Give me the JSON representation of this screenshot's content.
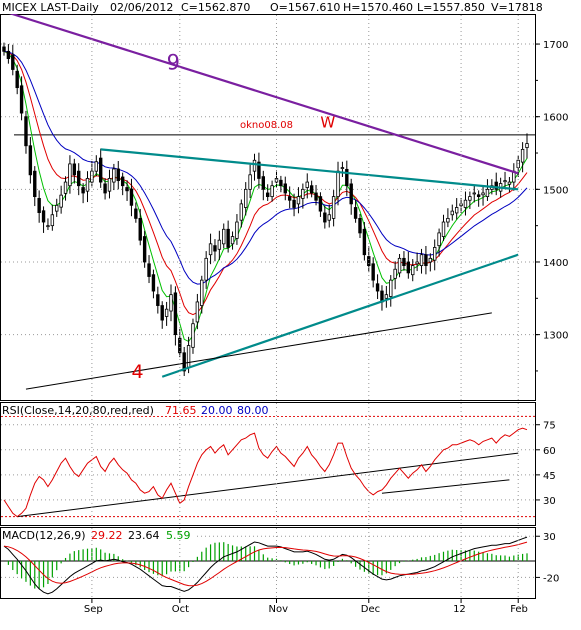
{
  "colors": {
    "background": "#ffffff",
    "grid": "#9a9a9a",
    "text": "#000000",
    "up_candle": "#ffffff",
    "down_candle": "#000000",
    "ma_fast": "#00c000",
    "ma_mid": "#e00000",
    "ma_slow": "#0000c0",
    "trend_purple": "#7a1fa0",
    "trend_teal": "#008b8b",
    "trend_black": "#000000",
    "annotation_red": "#e00000",
    "annotation_purple": "#7a1fa0",
    "rsi_line": "#e00000",
    "rsi_bound": "#e00000",
    "macd_main": "#000000",
    "macd_signal": "#e00000",
    "macd_hist": "#00a000"
  },
  "chart_data": [
    {
      "type": "candlestick",
      "header": {
        "symbol": "MICEX LAST-Daily",
        "date": "02/06/2012",
        "close": "C=1562.870",
        "open": "O=1567.610",
        "high": "H=1570.460",
        "low": "L=1557.850",
        "volume": "V=17818"
      },
      "x_tick_labels": [
        "Sep",
        "Oct",
        "Nov",
        "Dec",
        "12",
        "Feb"
      ],
      "y_tick_labels": [
        "1700",
        "1600",
        "1500",
        "1400",
        "1300"
      ],
      "ylim": [
        1210,
        1740
      ],
      "horizontal_level": {
        "value": 1575,
        "label": "okno08.08"
      },
      "annotations": [
        {
          "text": "9",
          "style": "large-purple",
          "x_index": 37,
          "y": 1665
        },
        {
          "text": "W",
          "style": "red",
          "x_index": 72,
          "y": 1585
        },
        {
          "text": "4",
          "style": "large-red",
          "x_index": 29,
          "y": 1240
        }
      ],
      "trendlines": [
        {
          "name": "purple",
          "from": [
            0,
            1745
          ],
          "to": [
            117,
            1522
          ]
        },
        {
          "name": "teal-top",
          "from": [
            22,
            1555
          ],
          "to": [
            117,
            1500
          ]
        },
        {
          "name": "teal-bottom",
          "from": [
            36,
            1242
          ],
          "to": [
            117,
            1410
          ]
        },
        {
          "name": "black-lower",
          "from": [
            5,
            1225
          ],
          "to": [
            111,
            1330
          ]
        }
      ],
      "series_close": [
        1690,
        1680,
        1665,
        1640,
        1605,
        1560,
        1520,
        1490,
        1468,
        1455,
        1450,
        1465,
        1478,
        1492,
        1510,
        1535,
        1520,
        1505,
        1495,
        1515,
        1525,
        1538,
        1510,
        1495,
        1515,
        1528,
        1512,
        1505,
        1498,
        1478,
        1460,
        1430,
        1400,
        1380,
        1360,
        1340,
        1320,
        1335,
        1355,
        1300,
        1275,
        1250,
        1285,
        1315,
        1345,
        1375,
        1405,
        1425,
        1415,
        1430,
        1445,
        1420,
        1435,
        1455,
        1480,
        1500,
        1520,
        1540,
        1515,
        1500,
        1490,
        1505,
        1515,
        1505,
        1495,
        1485,
        1475,
        1490,
        1500,
        1510,
        1495,
        1485,
        1470,
        1455,
        1465,
        1490,
        1525,
        1530,
        1505,
        1480,
        1460,
        1440,
        1410,
        1395,
        1375,
        1360,
        1345,
        1355,
        1375,
        1390,
        1405,
        1395,
        1385,
        1395,
        1400,
        1410,
        1395,
        1405,
        1420,
        1440,
        1455,
        1460,
        1470,
        1475,
        1480,
        1485,
        1490,
        1495,
        1490,
        1495,
        1500,
        1505,
        1500,
        1508,
        1512,
        1510,
        1525,
        1540,
        1555,
        1563
      ]
    },
    {
      "type": "line",
      "label": "RSI(Close,14,20,80,red,red)",
      "value_main": "71.65",
      "value_low": "20.00",
      "value_high": "80.00",
      "y_tick_labels": [
        "75",
        "60",
        "45",
        "30"
      ],
      "ylim": [
        15,
        88
      ],
      "bounds": [
        20,
        80
      ],
      "trendlines": [
        {
          "from": [
            3,
            20
          ],
          "to": [
            117,
            58
          ]
        },
        {
          "from": [
            86,
            34
          ],
          "to": [
            115,
            42
          ]
        }
      ],
      "values": [
        30,
        26,
        22,
        20,
        22,
        25,
        33,
        40,
        44,
        42,
        38,
        42,
        47,
        52,
        55,
        50,
        46,
        44,
        48,
        52,
        54,
        56,
        50,
        47,
        52,
        55,
        51,
        48,
        46,
        42,
        40,
        36,
        34,
        35,
        38,
        33,
        31,
        36,
        40,
        34,
        28,
        30,
        38,
        45,
        52,
        57,
        60,
        62,
        58,
        61,
        63,
        57,
        60,
        63,
        66,
        67,
        69,
        70,
        61,
        57,
        55,
        59,
        62,
        58,
        56,
        53,
        50,
        55,
        58,
        62,
        57,
        54,
        50,
        47,
        51,
        57,
        64,
        64,
        56,
        49,
        45,
        42,
        38,
        35,
        33,
        35,
        36,
        39,
        43,
        46,
        49,
        46,
        43,
        46,
        48,
        51,
        47,
        50,
        54,
        57,
        60,
        61,
        63,
        63,
        64,
        65,
        66,
        65,
        63,
        65,
        66,
        67,
        64,
        67,
        69,
        68,
        70,
        72,
        73,
        72
      ]
    },
    {
      "type": "line",
      "label": "MACD(12,26,9)",
      "value_main": "29.22",
      "value_signal": "23.64",
      "value_hist": "5.59",
      "x_tick_labels": [
        "Sep",
        "Oct",
        "Nov",
        "Dec",
        "12",
        "Feb"
      ],
      "y_tick_labels": [
        "30",
        "-20"
      ],
      "ylim": [
        -45,
        40
      ],
      "macd": [
        18,
        14,
        8,
        2,
        -5,
        -12,
        -20,
        -28,
        -34,
        -38,
        -40,
        -38,
        -34,
        -29,
        -24,
        -19,
        -15,
        -12,
        -9,
        -6,
        -3,
        0,
        1,
        0,
        1,
        2,
        1,
        -1,
        -2,
        -4,
        -7,
        -10,
        -14,
        -18,
        -22,
        -26,
        -30,
        -31,
        -31,
        -33,
        -35,
        -37,
        -35,
        -31,
        -26,
        -20,
        -14,
        -8,
        -3,
        1,
        5,
        7,
        9,
        11,
        14,
        17,
        20,
        23,
        22,
        20,
        18,
        18,
        18,
        17,
        15,
        13,
        11,
        11,
        11,
        12,
        10,
        8,
        5,
        2,
        1,
        2,
        5,
        8,
        7,
        4,
        0,
        -4,
        -8,
        -12,
        -16,
        -19,
        -22,
        -23,
        -22,
        -20,
        -18,
        -17,
        -16,
        -15,
        -14,
        -12,
        -11,
        -9,
        -7,
        -4,
        -1,
        2,
        5,
        7,
        9,
        11,
        13,
        15,
        16,
        17,
        18,
        19,
        19,
        20,
        21,
        21,
        23,
        25,
        27,
        29
      ]
    }
  ]
}
